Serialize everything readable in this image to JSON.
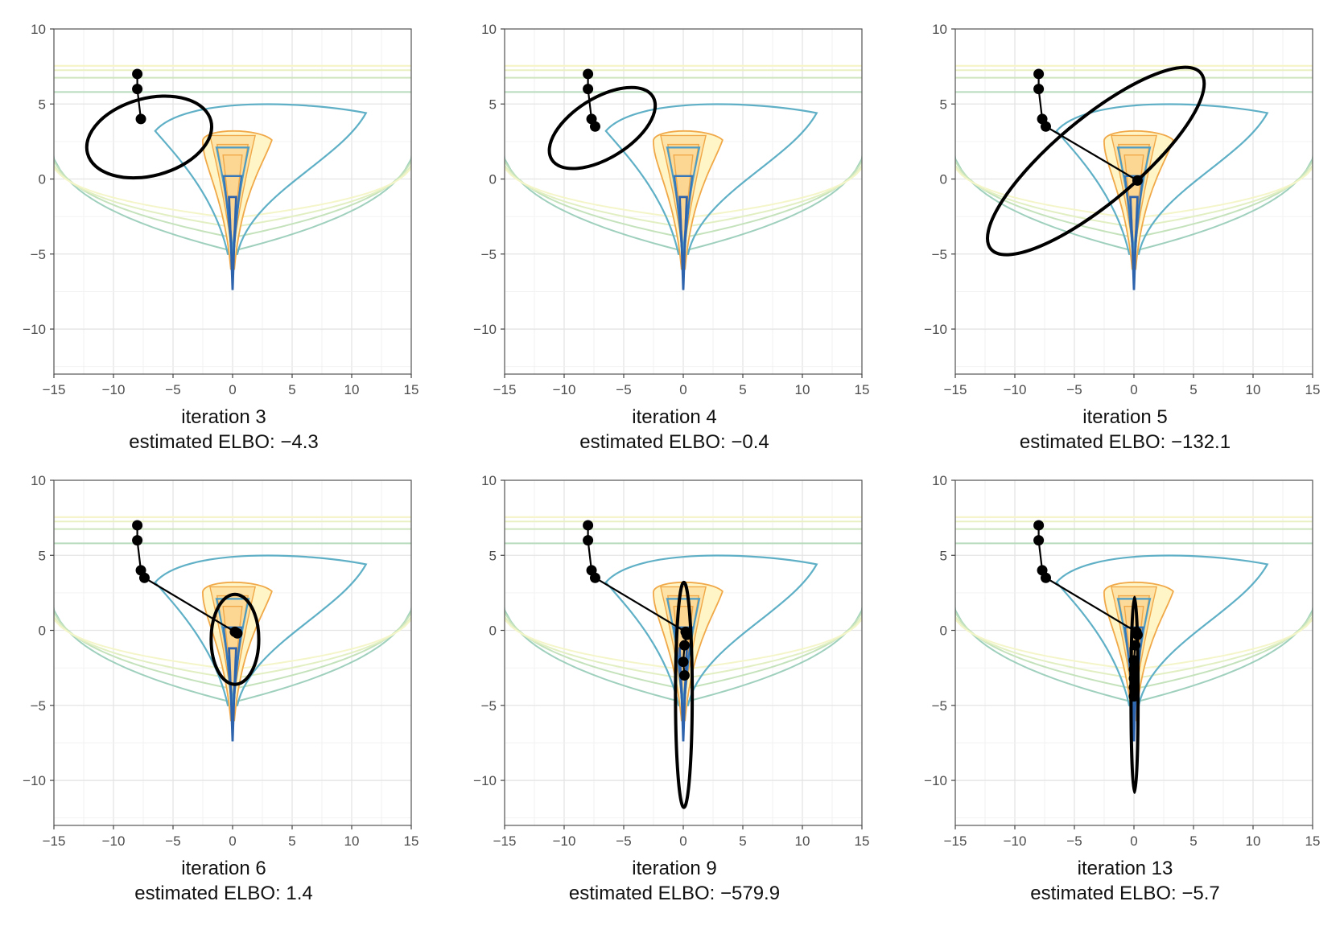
{
  "figure": {
    "panels": [
      {
        "iteration_label": "iteration 3",
        "elbo_label": "estimated ELBO: −4.3"
      },
      {
        "iteration_label": "iteration 4",
        "elbo_label": "estimated ELBO: −0.4"
      },
      {
        "iteration_label": "iteration 5",
        "elbo_label": "estimated ELBO: −132.1"
      },
      {
        "iteration_label": "iteration 6",
        "elbo_label": "estimated ELBO: 1.4"
      },
      {
        "iteration_label": "iteration 9",
        "elbo_label": "estimated ELBO: −579.9"
      },
      {
        "iteration_label": "iteration 13",
        "elbo_label": "estimated ELBO: −5.7"
      }
    ]
  },
  "chart_data": {
    "type": "line",
    "layout": "2 rows x 3 columns of panels",
    "xlim": [
      -15,
      15
    ],
    "ylim": [
      -13,
      10
    ],
    "xticks": [
      -15,
      -10,
      -5,
      0,
      5,
      10,
      15
    ],
    "yticks": [
      -10,
      -5,
      0,
      5,
      10
    ],
    "xtick_labels": [
      "−15",
      "−10",
      "−5",
      "0",
      "5",
      "10",
      "15"
    ],
    "ytick_labels": [
      "−10",
      "−5",
      "0",
      "5",
      "10"
    ],
    "grid": true,
    "background_density": "funnel-shaped target density shown as contours, identical in every panel",
    "colors": {
      "contour_outer": "#f4f6c8",
      "contour_mid": "#8cc6b8",
      "contour_inner": "#5aa9c5",
      "contour_core": "#2d6ab0",
      "sample_fill": "#fff5c6",
      "sample_contour": "#f0a848",
      "path": "#000000",
      "ellipse": "#000000"
    },
    "panels": [
      {
        "iteration": 3,
        "elbo": -4.3,
        "path": [
          [
            -8,
            7
          ],
          [
            -8,
            6
          ],
          [
            -7.7,
            4
          ]
        ],
        "ellipse": {
          "center": [
            -7,
            2.8
          ],
          "width": 6.5,
          "height": 8.5,
          "angle_deg": 75
        }
      },
      {
        "iteration": 4,
        "elbo": -0.4,
        "path": [
          [
            -8,
            7
          ],
          [
            -8,
            6
          ],
          [
            -7.7,
            4
          ],
          [
            -7.4,
            3.5
          ]
        ],
        "ellipse": {
          "center": [
            -6.8,
            3.4
          ],
          "width": 10,
          "height": 4,
          "angle_deg": -32
        }
      },
      {
        "iteration": 5,
        "elbo": -132.1,
        "path": [
          [
            -8,
            7
          ],
          [
            -8,
            6
          ],
          [
            -7.7,
            4
          ],
          [
            -7.4,
            3.5
          ],
          [
            0.3,
            -0.1
          ]
        ],
        "ellipse": {
          "center": [
            -3.2,
            1.2
          ],
          "width": 23,
          "height": 5.6,
          "angle_deg": -40
        }
      },
      {
        "iteration": 6,
        "elbo": 1.4,
        "path": [
          [
            -8,
            7
          ],
          [
            -8,
            6
          ],
          [
            -7.7,
            4
          ],
          [
            -7.4,
            3.5
          ],
          [
            0.2,
            -0.1
          ],
          [
            0.4,
            -0.2
          ]
        ],
        "ellipse": {
          "center": [
            0.2,
            -0.6
          ],
          "width": 4,
          "height": 6,
          "angle_deg": 90
        }
      },
      {
        "iteration": 9,
        "elbo": -579.9,
        "path": [
          [
            -8,
            7
          ],
          [
            -8,
            6
          ],
          [
            -7.7,
            4
          ],
          [
            -7.4,
            3.5
          ],
          [
            0.2,
            -0.1
          ],
          [
            0.3,
            -0.3
          ],
          [
            0.1,
            -1
          ],
          [
            0.0,
            -2.1
          ],
          [
            0.1,
            -3
          ]
        ],
        "ellipse": {
          "center": [
            0.05,
            -4.3
          ],
          "width": 1.4,
          "height": 15,
          "angle_deg": 90
        }
      },
      {
        "iteration": 13,
        "elbo": -5.7,
        "path": [
          [
            -8,
            7
          ],
          [
            -8,
            6
          ],
          [
            -7.7,
            4
          ],
          [
            -7.4,
            3.5
          ],
          [
            0.2,
            -0.1
          ],
          [
            0.3,
            -0.3
          ],
          [
            0.1,
            -1
          ],
          [
            0.0,
            -2
          ],
          [
            0.0,
            -2.6
          ],
          [
            0.0,
            -3.2
          ],
          [
            0.0,
            -3.8
          ],
          [
            0.0,
            -4.4
          ]
        ],
        "ellipse": {
          "center": [
            0.05,
            -4.3
          ],
          "width": 0.6,
          "height": 13,
          "angle_deg": 90
        }
      }
    ]
  }
}
